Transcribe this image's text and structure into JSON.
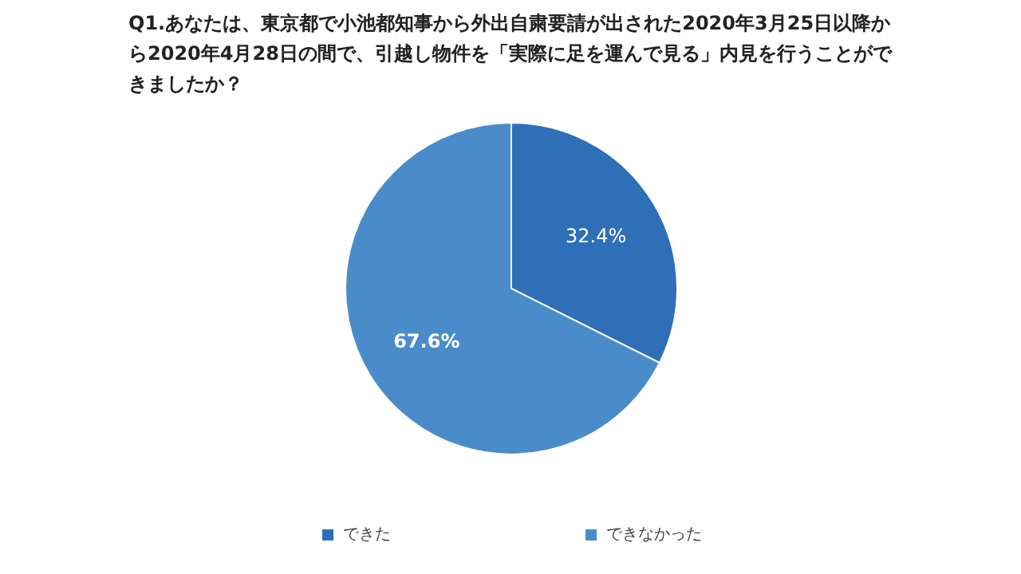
{
  "chart_data": {
    "type": "pie",
    "title": "Q1.あなたは、東京都で小池都知事から外出自粛要請が出された2020年3月25日以降から2020年4月28日の間で、引越し物件を「実際に足を運んで見る」内見を行うことができましたか？",
    "categories": [
      "できた",
      "できなかった"
    ],
    "values": [
      32.4,
      67.6
    ],
    "colors": [
      "#2e6fb8",
      "#4a8cc9"
    ],
    "value_labels": [
      "32.4%",
      "67.6%"
    ],
    "legend": "bottom"
  }
}
